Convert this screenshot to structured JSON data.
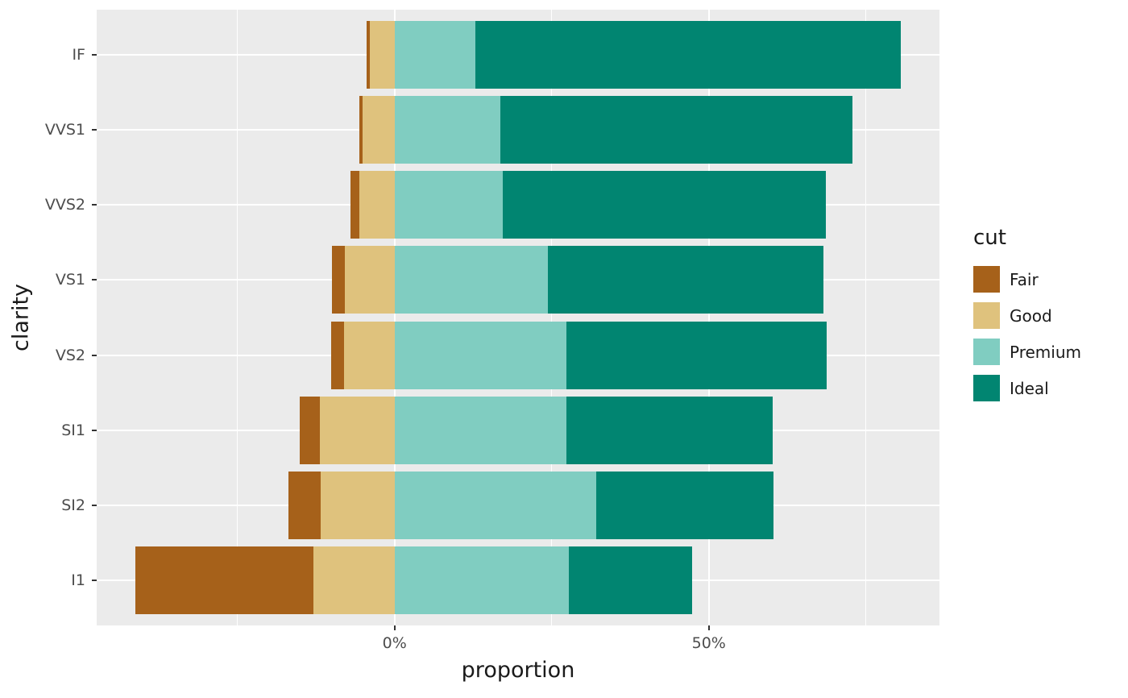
{
  "figure": {
    "background": "#FFFFFF",
    "panel_background": "#EBEBEB",
    "gridline_color": "#FFFFFF",
    "axis_text_color": "#4D4D4D",
    "title_text_color": "#1A1A1A",
    "tick_mark_color": "#333333"
  },
  "chart_data": {
    "type": "bar",
    "orientation": "horizontal",
    "stacking": "diverging",
    "title": "",
    "xlabel": "proportion",
    "ylabel": "clarity",
    "legend_title": "cut",
    "legend_position": "right",
    "unit": "percent",
    "categories": [
      "IF",
      "VVS1",
      "VVS2",
      "VS1",
      "VS2",
      "SI1",
      "SI2",
      "I1"
    ],
    "series": [
      {
        "name": "Fair",
        "color": "#A6611A",
        "side": "left",
        "values": [
          0.5,
          0.47,
          1.36,
          2.08,
          2.13,
          3.12,
          5.07,
          28.34
        ]
      },
      {
        "name": "Good",
        "color": "#DFC27D",
        "side": "left",
        "values": [
          3.97,
          5.09,
          5.65,
          7.93,
          7.98,
          11.94,
          11.76,
          12.96
        ]
      },
      {
        "name": "Premium",
        "color": "#80CDC1",
        "side": "right",
        "values": [
          12.85,
          16.85,
          17.17,
          24.34,
          27.39,
          27.36,
          32.08,
          27.67
        ]
      },
      {
        "name": "Ideal",
        "color": "#018571",
        "side": "right",
        "values": [
          67.71,
          56.01,
          51.44,
          43.92,
          41.37,
          32.77,
          28.26,
          19.7
        ]
      }
    ],
    "x_ticks": [
      {
        "value": 0,
        "label": "0%"
      },
      {
        "value": 50,
        "label": "50%"
      }
    ],
    "x_minor_gridlines": [
      -25,
      25,
      75
    ],
    "xlim": [
      -47.4,
      86.7
    ],
    "grid": true,
    "bar_width_fraction": 0.9
  }
}
